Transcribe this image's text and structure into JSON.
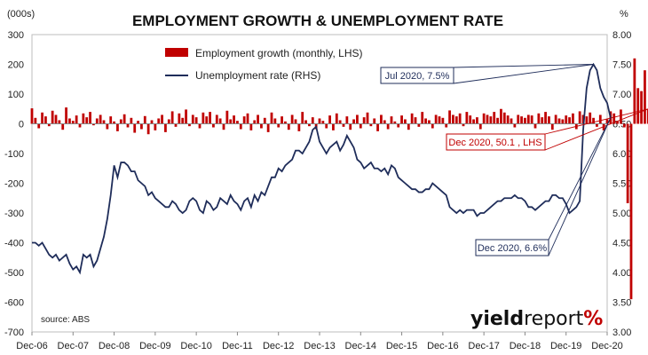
{
  "chart_data": {
    "type": "bar+line",
    "title": "EMPLOYMENT GROWTH & UNEMPLOYMENT RATE",
    "left_unit": "(000s)",
    "right_unit": "%",
    "left_axis": {
      "min": -700,
      "max": 300,
      "ticks": [
        "300",
        "200",
        "100",
        "0",
        "-100",
        "-200",
        "-300",
        "-400",
        "-500",
        "-600",
        "-700"
      ]
    },
    "right_axis": {
      "min": 3.0,
      "max": 8.0,
      "ticks": [
        "8.00",
        "7.50",
        "7.00",
        "6.50",
        "6.00",
        "5.50",
        "5.00",
        "4.50",
        "4.00",
        "3.50",
        "3.00"
      ]
    },
    "x_ticks": [
      "Dec-06",
      "Dec-07",
      "Dec-08",
      "Dec-09",
      "Dec-10",
      "Dec-11",
      "Dec-12",
      "Dec-13",
      "Dec-14",
      "Dec-15",
      "Dec-16",
      "Dec-17",
      "Dec-18",
      "Dec-19",
      "Dec-20"
    ],
    "legend": {
      "bars": "Employment growth (monthly, LHS)",
      "line": "Unemployment rate (RHS)",
      "placement": "top-center"
    },
    "colors": {
      "bars": "#c00000",
      "line": "#1f2d5a",
      "callout_red": "#c00000",
      "callout_blue": "#1f2d5a"
    },
    "series": [
      {
        "name": "Employment growth (monthly, LHS)",
        "axis": "left",
        "type": "bar",
        "start": "Dec-2006",
        "values": [
          52,
          20,
          -15,
          38,
          25,
          -8,
          44,
          30,
          12,
          -20,
          55,
          18,
          10,
          28,
          -12,
          35,
          22,
          40,
          -5,
          18,
          30,
          12,
          -18,
          25,
          8,
          -25,
          15,
          32,
          -12,
          20,
          -30,
          10,
          -18,
          26,
          -35,
          12,
          -22,
          18,
          30,
          -28,
          15,
          42,
          -10,
          35,
          20,
          48,
          -8,
          30,
          22,
          -15,
          38,
          25,
          40,
          -12,
          30,
          18,
          -20,
          44,
          15,
          28,
          10,
          -18,
          25,
          35,
          -22,
          12,
          30,
          -15,
          20,
          -28,
          38,
          18,
          -12,
          25,
          8,
          -20,
          30,
          15,
          -25,
          40,
          12,
          -8,
          22,
          -18,
          18,
          10,
          -15,
          28,
          -22,
          35,
          12,
          -10,
          25,
          -20,
          15,
          30,
          -15,
          22,
          38,
          -8,
          18,
          -25,
          30,
          12,
          -18,
          25,
          8,
          -12,
          28,
          15,
          -20,
          35,
          22,
          -10,
          40,
          18,
          12,
          -15,
          30,
          25,
          20,
          -12,
          45,
          30,
          25,
          35,
          -8,
          40,
          28,
          15,
          22,
          -18,
          35,
          30,
          25,
          40,
          20,
          50,
          38,
          28,
          18,
          -12,
          30,
          25,
          20,
          30,
          28,
          -15,
          35,
          22,
          40,
          25,
          -20,
          30,
          18,
          15,
          28,
          22,
          35,
          -18,
          42,
          30,
          25,
          38,
          20,
          -10,
          30,
          -22,
          15,
          42,
          35,
          10,
          48,
          -12,
          -267,
          -590,
          220,
          120,
          110,
          180,
          50.1
        ]
      },
      {
        "name": "Unemployment rate (RHS)",
        "axis": "right",
        "type": "line",
        "start": "Dec-2006",
        "values": [
          4.5,
          4.5,
          4.45,
          4.5,
          4.4,
          4.3,
          4.25,
          4.3,
          4.2,
          4.25,
          4.3,
          4.15,
          4.05,
          4.1,
          4.0,
          4.3,
          4.25,
          4.3,
          4.1,
          4.2,
          4.4,
          4.6,
          4.9,
          5.3,
          5.8,
          5.6,
          5.85,
          5.85,
          5.8,
          5.7,
          5.7,
          5.55,
          5.5,
          5.45,
          5.3,
          5.35,
          5.25,
          5.2,
          5.15,
          5.1,
          5.1,
          5.2,
          5.15,
          5.05,
          5.0,
          5.05,
          5.2,
          5.25,
          5.2,
          5.05,
          5.0,
          5.2,
          5.15,
          5.05,
          5.1,
          5.25,
          5.2,
          5.15,
          5.3,
          5.2,
          5.15,
          5.05,
          5.2,
          5.25,
          5.1,
          5.3,
          5.2,
          5.35,
          5.3,
          5.45,
          5.6,
          5.6,
          5.75,
          5.7,
          5.8,
          5.85,
          5.9,
          6.05,
          6.05,
          6.0,
          6.1,
          6.2,
          6.4,
          6.45,
          6.2,
          6.1,
          6.0,
          6.1,
          6.15,
          6.2,
          6.05,
          6.15,
          6.3,
          6.2,
          6.1,
          5.9,
          5.85,
          5.75,
          5.8,
          5.85,
          5.75,
          5.75,
          5.7,
          5.75,
          5.65,
          5.8,
          5.75,
          5.6,
          5.55,
          5.5,
          5.45,
          5.4,
          5.4,
          5.35,
          5.35,
          5.4,
          5.4,
          5.5,
          5.45,
          5.4,
          5.35,
          5.3,
          5.1,
          5.05,
          5.0,
          5.05,
          5.0,
          5.05,
          5.05,
          5.05,
          4.95,
          5.0,
          5.0,
          5.05,
          5.1,
          5.15,
          5.2,
          5.2,
          5.25,
          5.25,
          5.25,
          5.3,
          5.25,
          5.25,
          5.2,
          5.1,
          5.1,
          5.05,
          5.1,
          5.15,
          5.2,
          5.2,
          5.3,
          5.3,
          5.25,
          5.25,
          5.15,
          5.0,
          5.05,
          5.1,
          5.2,
          6.4,
          7.1,
          7.4,
          7.5,
          7.4,
          7.1,
          6.95,
          6.85,
          6.6
        ]
      }
    ],
    "annotations": [
      {
        "text": "Jul 2020, 7.5%",
        "series": "Unemployment rate (RHS)",
        "style": "blue"
      },
      {
        "text": "Dec 2020, 50.1 , LHS",
        "series": "Employment growth (monthly, LHS)",
        "style": "red"
      },
      {
        "text": "Dec 2020, 6.6%",
        "series": "Unemployment rate (RHS)",
        "style": "blue"
      }
    ],
    "source": "source: ABS",
    "brand": {
      "main": "yield",
      "accent": "report",
      "symbol": "%"
    }
  }
}
